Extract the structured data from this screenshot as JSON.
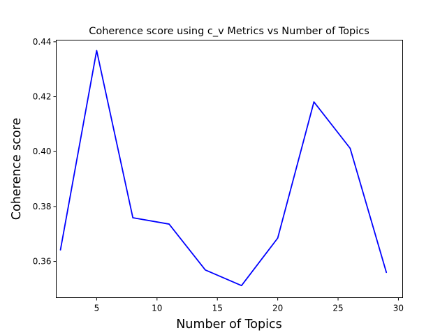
{
  "chart_data": {
    "type": "line",
    "title": "Coherence score using c_v Metrics vs Number of Topics",
    "xlabel": "Number of Topics",
    "ylabel": "Coherence score",
    "xlim": [
      1.65,
      30.35
    ],
    "ylim": [
      0.3468,
      0.4406
    ],
    "x_ticks": [
      5,
      10,
      15,
      20,
      25,
      30
    ],
    "x_tick_labels": [
      "5",
      "10",
      "15",
      "20",
      "25",
      "30"
    ],
    "y_ticks": [
      0.36,
      0.38,
      0.4,
      0.42,
      0.44
    ],
    "y_tick_labels": [
      "0.36",
      "0.38",
      "0.40",
      "0.42",
      "0.44"
    ],
    "grid": false,
    "series": [
      {
        "color": "#0000ff",
        "x": [
          2,
          5,
          8,
          11,
          14,
          17,
          20,
          23,
          26,
          29
        ],
        "y": [
          0.3642,
          0.4368,
          0.3759,
          0.3736,
          0.3569,
          0.3512,
          0.3685,
          0.4181,
          0.4012,
          0.356
        ]
      }
    ]
  }
}
